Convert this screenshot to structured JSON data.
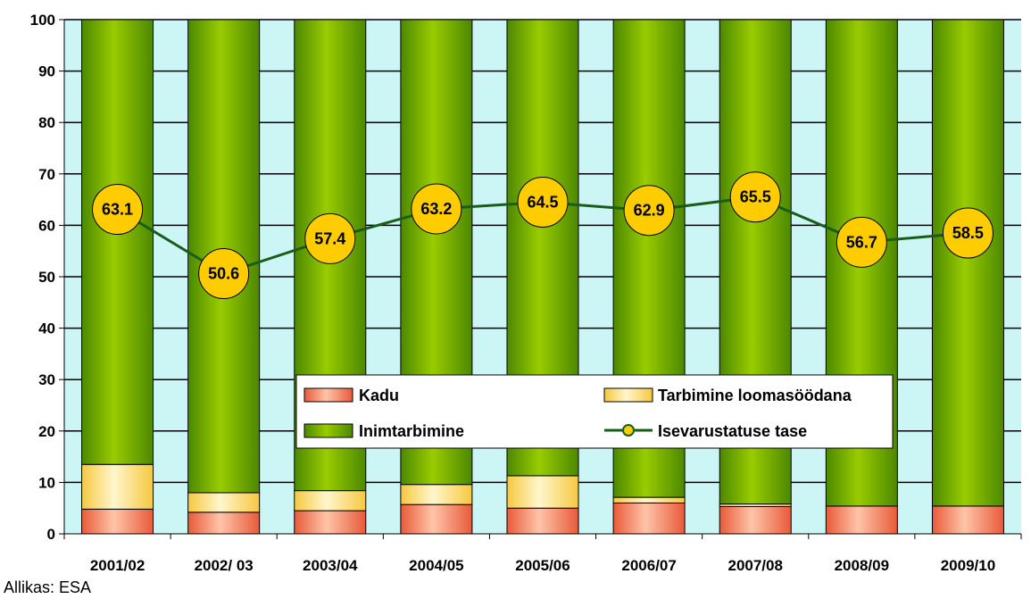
{
  "chart_data": {
    "type": "bar",
    "stacked": true,
    "categories": [
      "2001/02",
      "2002/ 03",
      "2003/04",
      "2004/05",
      "2005/06",
      "2006/07",
      "2007/08",
      "2008/09",
      "2009/10"
    ],
    "ylim": [
      0,
      100
    ],
    "yticks": [
      0,
      10,
      20,
      30,
      40,
      50,
      60,
      70,
      80,
      90,
      100
    ],
    "series": [
      {
        "name": "Kadu",
        "kind": "bar",
        "color": "#f07850",
        "values": [
          4.8,
          4.2,
          4.5,
          5.7,
          5.0,
          6.0,
          5.3,
          5.4,
          5.4
        ]
      },
      {
        "name": "Tarbimine loomasöödana",
        "kind": "bar",
        "color": "#ffe080",
        "values": [
          8.7,
          3.8,
          3.9,
          3.9,
          6.3,
          1.1,
          0.5,
          0.0,
          0.0
        ]
      },
      {
        "name": "Inimtarbimine",
        "kind": "bar",
        "color": "#66aa00",
        "values": [
          86.5,
          92.0,
          91.6,
          90.4,
          88.7,
          92.9,
          94.2,
          94.6,
          94.6
        ]
      },
      {
        "name": "Isevarustatuse tase",
        "kind": "line",
        "color": "#1a5c1a",
        "marker_color": "#ffcc00",
        "values": [
          63.1,
          50.6,
          57.4,
          63.2,
          64.5,
          62.9,
          65.5,
          56.7,
          58.5
        ],
        "value_labels": [
          "63.1",
          "50.6",
          "57.4",
          "63.2",
          "64.5",
          "62.9",
          "65.5",
          "56.7",
          "58.5"
        ]
      }
    ],
    "plot_background": "#ccf5f5",
    "grid": true,
    "legend_position": "inside-bottom-right",
    "source_note": "Allikas: ESA"
  }
}
